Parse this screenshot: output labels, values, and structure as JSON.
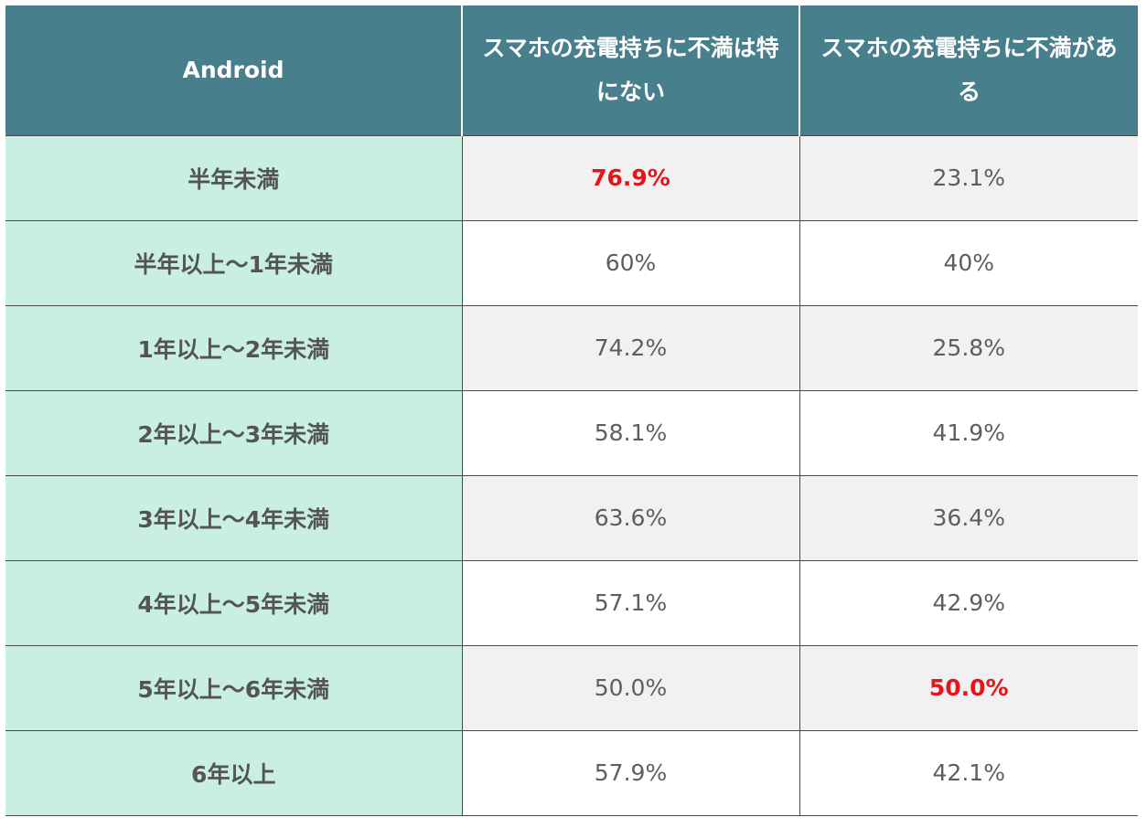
{
  "chart_data": {
    "type": "table",
    "header": {
      "col0": "Android",
      "col1": "スマホの充電持ちに不満は特にない",
      "col2": "スマホの充電持ちに不満がある"
    },
    "rows": [
      {
        "label": "半年未満",
        "v1": "76.9%",
        "v2": "23.1%",
        "h1": true,
        "h2": false
      },
      {
        "label": "半年以上〜1年未満",
        "v1": "60%",
        "v2": "40%",
        "h1": false,
        "h2": false
      },
      {
        "label": "1年以上〜2年未満",
        "v1": "74.2%",
        "v2": "25.8%",
        "h1": false,
        "h2": false
      },
      {
        "label": "2年以上〜3年未満",
        "v1": "58.1%",
        "v2": "41.9%",
        "h1": false,
        "h2": false
      },
      {
        "label": "3年以上〜4年未満",
        "v1": "63.6%",
        "v2": "36.4%",
        "h1": false,
        "h2": false
      },
      {
        "label": "4年以上〜5年未満",
        "v1": "57.1%",
        "v2": "42.9%",
        "h1": false,
        "h2": false
      },
      {
        "label": "5年以上〜6年未満",
        "v1": "50.0%",
        "v2": "50.0%",
        "h1": false,
        "h2": true
      },
      {
        "label": "6年以上",
        "v1": "57.9%",
        "v2": "42.1%",
        "h1": false,
        "h2": false
      }
    ],
    "colors": {
      "header_bg": "#477f8c",
      "label_bg": "#c8efe2",
      "highlight": "#e8141a"
    }
  }
}
